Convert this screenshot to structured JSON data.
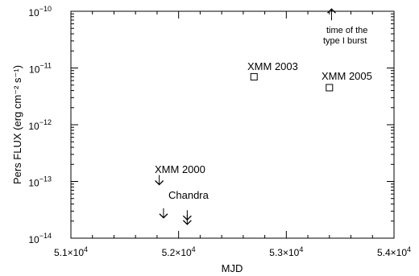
{
  "chart_data": {
    "type": "scatter",
    "xlabel": "MJD",
    "ylabel": "Pers FLUX (erg cm⁻² s⁻¹)",
    "xlim": [
      51000,
      54000
    ],
    "ylim": [
      1e-14,
      1e-10
    ],
    "yscale": "log",
    "grid": false,
    "x_ticks": [
      {
        "value": 51000,
        "mant": "5.1×10",
        "exp": "4"
      },
      {
        "value": 52000,
        "mant": "5.2×10",
        "exp": "4"
      },
      {
        "value": 53000,
        "mant": "5.3×10",
        "exp": "4"
      },
      {
        "value": 54000,
        "mant": "5.4×10",
        "exp": "4"
      }
    ],
    "y_ticks": [
      {
        "value": 1e-14,
        "mant": "10",
        "exp": "−14"
      },
      {
        "value": 1e-13,
        "mant": "10",
        "exp": "−13"
      },
      {
        "value": 1e-12,
        "mant": "10",
        "exp": "−12"
      },
      {
        "value": 1e-11,
        "mant": "10",
        "exp": "−11"
      },
      {
        "value": 1e-10,
        "mant": "10",
        "exp": "−10"
      }
    ],
    "detections": [
      {
        "label": "XMM 2003",
        "x": 52700,
        "y": 7e-12
      },
      {
        "label": "XMM 2005",
        "x": 53400,
        "y": 4.5e-12
      }
    ],
    "upper_limits": [
      {
        "label": "XMM 2000",
        "x": 51820,
        "y": 1e-13
      },
      {
        "label": "Chandra",
        "x": 51860,
        "y": 2.6e-14
      },
      {
        "label": "",
        "x": 52080,
        "y": 2.4e-14
      },
      {
        "label": "",
        "x": 52080,
        "y": 2e-14
      }
    ],
    "burst_marker": {
      "x": 53420,
      "y": 9e-11
    },
    "annotations": {
      "xmm2000": "XMM 2000",
      "chandra": "Chandra",
      "xmm2003": "XMM 2003",
      "xmm2005": "XMM 2005",
      "burst_line1": "time of the",
      "burst_line2": "type I burst"
    }
  }
}
